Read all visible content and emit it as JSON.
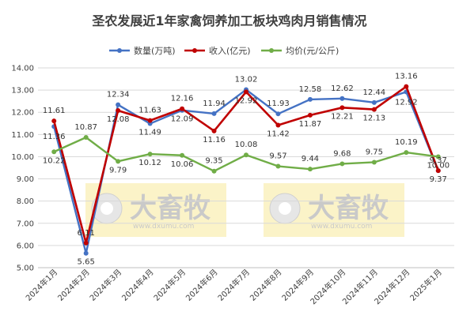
{
  "chart_data": {
    "type": "line",
    "title": "圣农发展近1年家禽饲养加工板块鸡肉月销售情况",
    "categories": [
      "2024年1月",
      "2024年2月",
      "2024年3月",
      "2024年4月",
      "2024年5月",
      "2024年6月",
      "2024年7月",
      "2024年8月",
      "2024年9月",
      "2024年10月",
      "2024年11月",
      "2024年12月",
      "2025年1月"
    ],
    "ylim": [
      5.0,
      14.0
    ],
    "yticks": [
      "5.00",
      "6.00",
      "7.00",
      "8.00",
      "9.00",
      "10.00",
      "11.00",
      "12.00",
      "13.00",
      "14.00"
    ],
    "grid": true,
    "legend_position": "top",
    "series": [
      {
        "name": "数量(万吨)",
        "color": "#4472C4",
        "values": [
          11.36,
          5.65,
          12.34,
          11.49,
          12.09,
          11.94,
          13.02,
          11.93,
          12.58,
          12.62,
          12.44,
          12.92,
          9.37
        ],
        "labels": [
          "11.36",
          "5.65",
          "12.34",
          "11.49",
          "12.09",
          "11.94",
          "13.02",
          "11.93",
          "12.58",
          "12.62",
          "12.44",
          "12.92",
          "9.37"
        ]
      },
      {
        "name": "收入(亿元)",
        "color": "#C00000",
        "values": [
          11.61,
          6.11,
          12.08,
          11.63,
          12.16,
          11.16,
          12.92,
          11.42,
          11.87,
          12.21,
          12.13,
          13.16,
          9.37
        ],
        "labels": [
          "11.61",
          "6.11",
          "12.08",
          "11.63",
          "12.16",
          "11.16",
          "12.92",
          "11.42",
          "11.87",
          "12.21",
          "12.13",
          "13.16",
          "9.37"
        ]
      },
      {
        "name": "均价(元/公斤)",
        "color": "#70AD47",
        "values": [
          10.22,
          10.87,
          9.79,
          10.12,
          10.06,
          9.35,
          10.08,
          9.57,
          9.44,
          9.68,
          9.75,
          10.19,
          10.0
        ],
        "labels": [
          "10.22",
          "10.87",
          "9.79",
          "10.12",
          "10.06",
          "9.35",
          "10.08",
          "9.57",
          "9.44",
          "9.68",
          "9.75",
          "10.19",
          "10.00"
        ]
      }
    ]
  },
  "watermark": {
    "brand": "大畜牧",
    "site": "www.dxumu.com",
    "background_color": "#FBF3C8"
  }
}
